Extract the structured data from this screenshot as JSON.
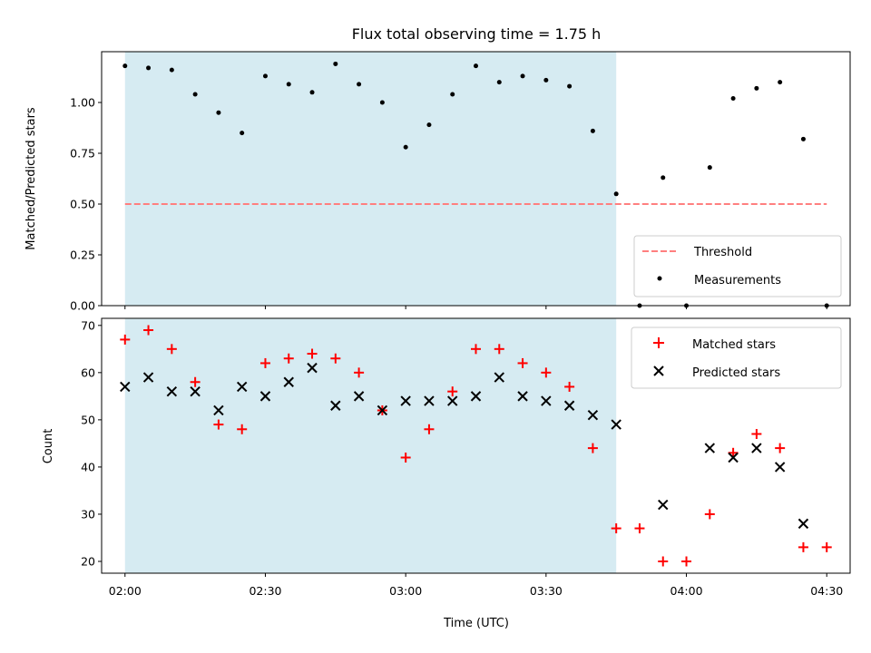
{
  "colors": {
    "shade": "#add8e6",
    "threshold": "#ff7f7f",
    "measurement": "#000000",
    "matched": "#ff0000",
    "predicted": "#000000"
  },
  "chart_data": [
    {
      "type": "scatter",
      "title": "Flux total observing time = 1.75 h",
      "xlabel": "",
      "ylabel": "Matched/Predicted stars",
      "x_range_minutes": [
        115,
        275
      ],
      "ylim": [
        0,
        1.25
      ],
      "yticks": [
        0.0,
        0.25,
        0.5,
        0.75,
        1.0
      ],
      "ytick_labels": [
        "0.00",
        "0.25",
        "0.50",
        "0.75",
        "1.00"
      ],
      "shaded_interval": [
        "02:00",
        "03:45"
      ],
      "legend_position": "lower-right",
      "series": [
        {
          "name": "Threshold",
          "style": "dashed-line",
          "x": [
            "02:00",
            "04:30"
          ],
          "y": [
            0.5,
            0.5
          ]
        },
        {
          "name": "Measurements",
          "style": "dot",
          "x": [
            "02:00",
            "02:05",
            "02:10",
            "02:15",
            "02:20",
            "02:25",
            "02:30",
            "02:35",
            "02:40",
            "02:45",
            "02:50",
            "02:55",
            "03:00",
            "03:05",
            "03:10",
            "03:15",
            "03:20",
            "03:25",
            "03:30",
            "03:35",
            "03:40",
            "03:45",
            "03:50",
            "03:55",
            "04:00",
            "04:05",
            "04:10",
            "04:15",
            "04:20",
            "04:25",
            "04:30"
          ],
          "y": [
            1.18,
            1.17,
            1.16,
            1.04,
            0.95,
            0.85,
            1.13,
            1.09,
            1.05,
            1.19,
            1.09,
            1.0,
            0.78,
            0.89,
            1.04,
            1.18,
            1.1,
            1.13,
            1.11,
            1.08,
            0.86,
            0.55,
            0.0,
            0.63,
            0.0,
            0.68,
            1.02,
            1.07,
            1.1,
            0.82,
            0.0
          ]
        }
      ]
    },
    {
      "type": "scatter",
      "title": "",
      "xlabel": "Time (UTC)",
      "ylabel": "Count",
      "x_range_minutes": [
        115,
        275
      ],
      "xticks": [
        "02:00",
        "02:30",
        "03:00",
        "03:30",
        "04:00",
        "04:30"
      ],
      "ylim": [
        17.5,
        71.5
      ],
      "yticks": [
        20,
        30,
        40,
        50,
        60,
        70
      ],
      "shaded_interval": [
        "02:00",
        "03:45"
      ],
      "legend_position": "top-right",
      "series": [
        {
          "name": "Matched stars",
          "marker": "+",
          "x": [
            "02:00",
            "02:05",
            "02:10",
            "02:15",
            "02:20",
            "02:25",
            "02:30",
            "02:35",
            "02:40",
            "02:45",
            "02:50",
            "02:55",
            "03:00",
            "03:05",
            "03:10",
            "03:15",
            "03:20",
            "03:25",
            "03:30",
            "03:35",
            "03:40",
            "03:45",
            "03:50",
            "03:55",
            "04:00",
            "04:05",
            "04:10",
            "04:15",
            "04:20",
            "04:25",
            "04:30"
          ],
          "y": [
            67,
            69,
            65,
            58,
            49,
            48,
            62,
            63,
            64,
            63,
            60,
            52,
            42,
            48,
            56,
            65,
            65,
            62,
            60,
            57,
            44,
            27,
            27,
            20,
            20,
            30,
            43,
            47,
            44,
            23,
            23
          ]
        },
        {
          "name": "Predicted stars",
          "marker": "x",
          "x": [
            "02:00",
            "02:05",
            "02:10",
            "02:15",
            "02:20",
            "02:25",
            "02:30",
            "02:35",
            "02:40",
            "02:45",
            "02:50",
            "02:55",
            "03:00",
            "03:05",
            "03:10",
            "03:15",
            "03:20",
            "03:25",
            "03:30",
            "03:35",
            "03:40",
            "03:45",
            "03:55",
            "04:05",
            "04:10",
            "04:15",
            "04:20",
            "04:25"
          ],
          "y": [
            57,
            59,
            56,
            56,
            52,
            57,
            55,
            58,
            61,
            53,
            55,
            52,
            54,
            54,
            54,
            55,
            59,
            55,
            54,
            53,
            51,
            49,
            32,
            44,
            42,
            44,
            40,
            28
          ]
        }
      ]
    }
  ]
}
